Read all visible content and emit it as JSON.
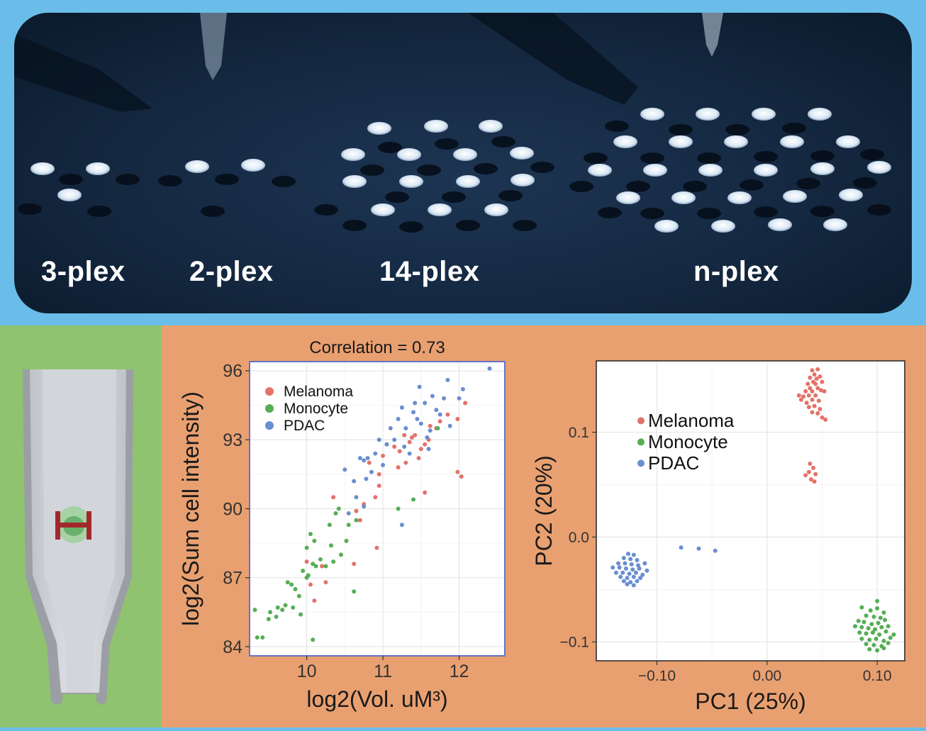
{
  "photo": {
    "labels": [
      "3-plex",
      "2-plex",
      "14-plex",
      "n-plex"
    ]
  },
  "chart_data": [
    {
      "type": "scatter",
      "title": "Correlation = 0.73",
      "xlabel": "log2(Vol.  uM³)",
      "ylabel": "log2(Sum cell intensity)",
      "xlim": [
        9.25,
        12.6
      ],
      "ylim": [
        83.6,
        96.4
      ],
      "xticks": [
        10,
        11,
        12
      ],
      "yticks": [
        84,
        87,
        90,
        93,
        96
      ],
      "grid": true,
      "frame_color": "#6673c8",
      "legend_position": "top-left",
      "series": [
        {
          "name": "Melanoma",
          "color": "#e2736a",
          "points": [
            [
              10.0,
              87.7
            ],
            [
              10.2,
              87.5
            ],
            [
              10.05,
              86.7
            ],
            [
              10.25,
              86.8
            ],
            [
              10.1,
              86.0
            ],
            [
              10.35,
              90.5
            ],
            [
              10.7,
              89.5
            ],
            [
              10.62,
              87.6
            ],
            [
              10.92,
              88.3
            ],
            [
              10.9,
              90.5
            ],
            [
              10.95,
              91.5
            ],
            [
              11.0,
              92.3
            ],
            [
              11.05,
              92.8
            ],
            [
              11.15,
              92.7
            ],
            [
              11.2,
              91.8
            ],
            [
              11.22,
              92.5
            ],
            [
              11.3,
              92.0
            ],
            [
              11.35,
              92.9
            ],
            [
              11.28,
              93.2
            ],
            [
              11.38,
              93.1
            ],
            [
              11.42,
              93.2
            ],
            [
              11.47,
              92.2
            ],
            [
              11.5,
              92.6
            ],
            [
              11.55,
              92.8
            ],
            [
              11.6,
              93.0
            ],
            [
              11.62,
              93.6
            ],
            [
              11.55,
              90.7
            ],
            [
              11.7,
              93.5
            ],
            [
              11.75,
              93.8
            ],
            [
              11.85,
              94.1
            ],
            [
              11.98,
              91.6
            ],
            [
              12.03,
              91.4
            ],
            [
              11.98,
              93.9
            ],
            [
              12.08,
              94.6
            ],
            [
              10.65,
              89.9
            ],
            [
              10.95,
              91.0
            ],
            [
              10.82,
              92.0
            ],
            [
              10.75,
              90.2
            ]
          ]
        },
        {
          "name": "Monocyte",
          "color": "#55ae55",
          "points": [
            [
              9.32,
              85.6
            ],
            [
              9.35,
              84.4
            ],
            [
              9.42,
              84.4
            ],
            [
              9.5,
              85.2
            ],
            [
              9.52,
              85.5
            ],
            [
              9.6,
              85.3
            ],
            [
              9.62,
              85.7
            ],
            [
              9.68,
              85.6
            ],
            [
              9.72,
              85.8
            ],
            [
              9.75,
              86.8
            ],
            [
              9.8,
              86.7
            ],
            [
              9.82,
              85.7
            ],
            [
              9.85,
              86.5
            ],
            [
              9.9,
              86.2
            ],
            [
              9.92,
              85.4
            ],
            [
              9.95,
              87.3
            ],
            [
              10.0,
              88.3
            ],
            [
              10.02,
              87.1
            ],
            [
              10.05,
              88.9
            ],
            [
              10.08,
              87.6
            ],
            [
              10.1,
              88.6
            ],
            [
              10.12,
              87.5
            ],
            [
              10.18,
              87.8
            ],
            [
              10.25,
              87.5
            ],
            [
              10.3,
              89.3
            ],
            [
              10.32,
              88.4
            ],
            [
              10.38,
              89.8
            ],
            [
              10.35,
              87.7
            ],
            [
              10.42,
              90.0
            ],
            [
              10.45,
              88.0
            ],
            [
              10.52,
              88.6
            ],
            [
              10.55,
              89.3
            ],
            [
              10.62,
              86.4
            ],
            [
              10.08,
              84.3
            ],
            [
              10.65,
              89.5
            ],
            [
              11.4,
              90.4
            ],
            [
              11.72,
              93.5
            ],
            [
              11.2,
              90.0
            ],
            [
              10.0,
              87.0
            ]
          ]
        },
        {
          "name": "PDAC",
          "color": "#6a8ed0",
          "points": [
            [
              10.5,
              91.7
            ],
            [
              10.55,
              89.8
            ],
            [
              10.62,
              91.2
            ],
            [
              10.65,
              90.5
            ],
            [
              10.7,
              92.2
            ],
            [
              10.75,
              92.1
            ],
            [
              10.78,
              91.3
            ],
            [
              10.8,
              92.2
            ],
            [
              10.85,
              91.6
            ],
            [
              10.9,
              92.4
            ],
            [
              10.95,
              93.0
            ],
            [
              11.0,
              91.9
            ],
            [
              11.05,
              92.8
            ],
            [
              11.1,
              93.5
            ],
            [
              11.15,
              93.0
            ],
            [
              11.2,
              93.9
            ],
            [
              11.25,
              94.4
            ],
            [
              11.3,
              93.5
            ],
            [
              11.35,
              92.4
            ],
            [
              11.4,
              94.2
            ],
            [
              11.45,
              93.9
            ],
            [
              11.5,
              93.7
            ],
            [
              11.55,
              94.6
            ],
            [
              11.58,
              93.1
            ],
            [
              11.62,
              93.4
            ],
            [
              11.65,
              94.9
            ],
            [
              11.7,
              94.3
            ],
            [
              11.75,
              94.1
            ],
            [
              11.8,
              94.8
            ],
            [
              11.85,
              95.6
            ],
            [
              12.05,
              95.2
            ],
            [
              12.0,
              94.8
            ],
            [
              11.88,
              93.6
            ],
            [
              12.4,
              96.1
            ],
            [
              11.25,
              89.3
            ],
            [
              10.75,
              90.1
            ],
            [
              11.28,
              92.7
            ],
            [
              11.6,
              92.6
            ],
            [
              11.42,
              94.6
            ],
            [
              11.48,
              95.3
            ]
          ]
        }
      ]
    },
    {
      "type": "scatter",
      "title": "",
      "xlabel": "PC1 (25%)",
      "ylabel": "PC2 (20%)",
      "xlim": [
        -0.155,
        0.125
      ],
      "ylim": [
        -0.118,
        0.168
      ],
      "xticks": [
        "-0.10",
        "0.00",
        "0.10"
      ],
      "yticks": [
        "-0.1",
        "0.0",
        "0.1"
      ],
      "xtick_values": [
        -0.1,
        0.0,
        0.1
      ],
      "ytick_values": [
        -0.1,
        0.0,
        0.1
      ],
      "grid": true,
      "legend_position": "top-left",
      "series": [
        {
          "name": "Melanoma",
          "color": "#e2736a",
          "points": [
            [
              0.041,
              0.159
            ],
            [
              0.046,
              0.16
            ],
            [
              0.043,
              0.155
            ],
            [
              0.039,
              0.152
            ],
            [
              0.045,
              0.151
            ],
            [
              0.048,
              0.153
            ],
            [
              0.042,
              0.148
            ],
            [
              0.037,
              0.146
            ],
            [
              0.044,
              0.146
            ],
            [
              0.05,
              0.148
            ],
            [
              0.039,
              0.142
            ],
            [
              0.046,
              0.142
            ],
            [
              0.035,
              0.139
            ],
            [
              0.041,
              0.139
            ],
            [
              0.049,
              0.14
            ],
            [
              0.052,
              0.139
            ],
            [
              0.029,
              0.135
            ],
            [
              0.033,
              0.134
            ],
            [
              0.038,
              0.135
            ],
            [
              0.044,
              0.135
            ],
            [
              0.031,
              0.131
            ],
            [
              0.036,
              0.128
            ],
            [
              0.041,
              0.131
            ],
            [
              0.047,
              0.13
            ],
            [
              0.038,
              0.124
            ],
            [
              0.043,
              0.125
            ],
            [
              0.048,
              0.122
            ],
            [
              0.041,
              0.119
            ],
            [
              0.046,
              0.118
            ],
            [
              0.05,
              0.114
            ],
            [
              0.053,
              0.112
            ],
            [
              0.039,
              0.07
            ],
            [
              0.042,
              0.066
            ],
            [
              0.038,
              0.062
            ],
            [
              0.044,
              0.06
            ],
            [
              0.035,
              0.059
            ],
            [
              0.04,
              0.055
            ],
            [
              0.043,
              0.053
            ]
          ]
        },
        {
          "name": "Monocyte",
          "color": "#55ae55",
          "points": [
            [
              0.1,
              -0.061
            ],
            [
              0.086,
              -0.067
            ],
            [
              0.094,
              -0.07
            ],
            [
              0.1,
              -0.068
            ],
            [
              0.106,
              -0.072
            ],
            [
              0.09,
              -0.075
            ],
            [
              0.097,
              -0.076
            ],
            [
              0.103,
              -0.077
            ],
            [
              0.083,
              -0.08
            ],
            [
              0.088,
              -0.081
            ],
            [
              0.095,
              -0.083
            ],
            [
              0.101,
              -0.082
            ],
            [
              0.107,
              -0.079
            ],
            [
              0.08,
              -0.085
            ],
            [
              0.086,
              -0.086
            ],
            [
              0.092,
              -0.087
            ],
            [
              0.098,
              -0.088
            ],
            [
              0.104,
              -0.086
            ],
            [
              0.11,
              -0.085
            ],
            [
              0.084,
              -0.091
            ],
            [
              0.09,
              -0.092
            ],
            [
              0.096,
              -0.091
            ],
            [
              0.102,
              -0.093
            ],
            [
              0.108,
              -0.09
            ],
            [
              0.115,
              -0.093
            ],
            [
              0.086,
              -0.097
            ],
            [
              0.093,
              -0.098
            ],
            [
              0.099,
              -0.097
            ],
            [
              0.106,
              -0.099
            ],
            [
              0.112,
              -0.096
            ],
            [
              0.09,
              -0.102
            ],
            [
              0.097,
              -0.103
            ],
            [
              0.104,
              -0.104
            ],
            [
              0.11,
              -0.101
            ],
            [
              0.093,
              -0.107
            ],
            [
              0.1,
              -0.108
            ],
            [
              0.106,
              -0.106
            ]
          ]
        },
        {
          "name": "PDAC",
          "color": "#6a8ed0",
          "points": [
            [
              -0.126,
              -0.016
            ],
            [
              -0.121,
              -0.017
            ],
            [
              -0.13,
              -0.02
            ],
            [
              -0.124,
              -0.021
            ],
            [
              -0.118,
              -0.022
            ],
            [
              -0.135,
              -0.025
            ],
            [
              -0.129,
              -0.025
            ],
            [
              -0.123,
              -0.026
            ],
            [
              -0.117,
              -0.027
            ],
            [
              -0.111,
              -0.025
            ],
            [
              -0.14,
              -0.029
            ],
            [
              -0.134,
              -0.029
            ],
            [
              -0.128,
              -0.03
            ],
            [
              -0.122,
              -0.031
            ],
            [
              -0.116,
              -0.03
            ],
            [
              -0.109,
              -0.032
            ],
            [
              -0.137,
              -0.034
            ],
            [
              -0.131,
              -0.034
            ],
            [
              -0.125,
              -0.035
            ],
            [
              -0.119,
              -0.034
            ],
            [
              -0.113,
              -0.036
            ],
            [
              -0.133,
              -0.038
            ],
            [
              -0.127,
              -0.039
            ],
            [
              -0.121,
              -0.038
            ],
            [
              -0.115,
              -0.039
            ],
            [
              -0.13,
              -0.042
            ],
            [
              -0.124,
              -0.043
            ],
            [
              -0.118,
              -0.042
            ],
            [
              -0.127,
              -0.045
            ],
            [
              -0.121,
              -0.046
            ],
            [
              -0.078,
              -0.01
            ],
            [
              -0.062,
              -0.011
            ],
            [
              -0.047,
              -0.013
            ]
          ]
        }
      ]
    }
  ]
}
